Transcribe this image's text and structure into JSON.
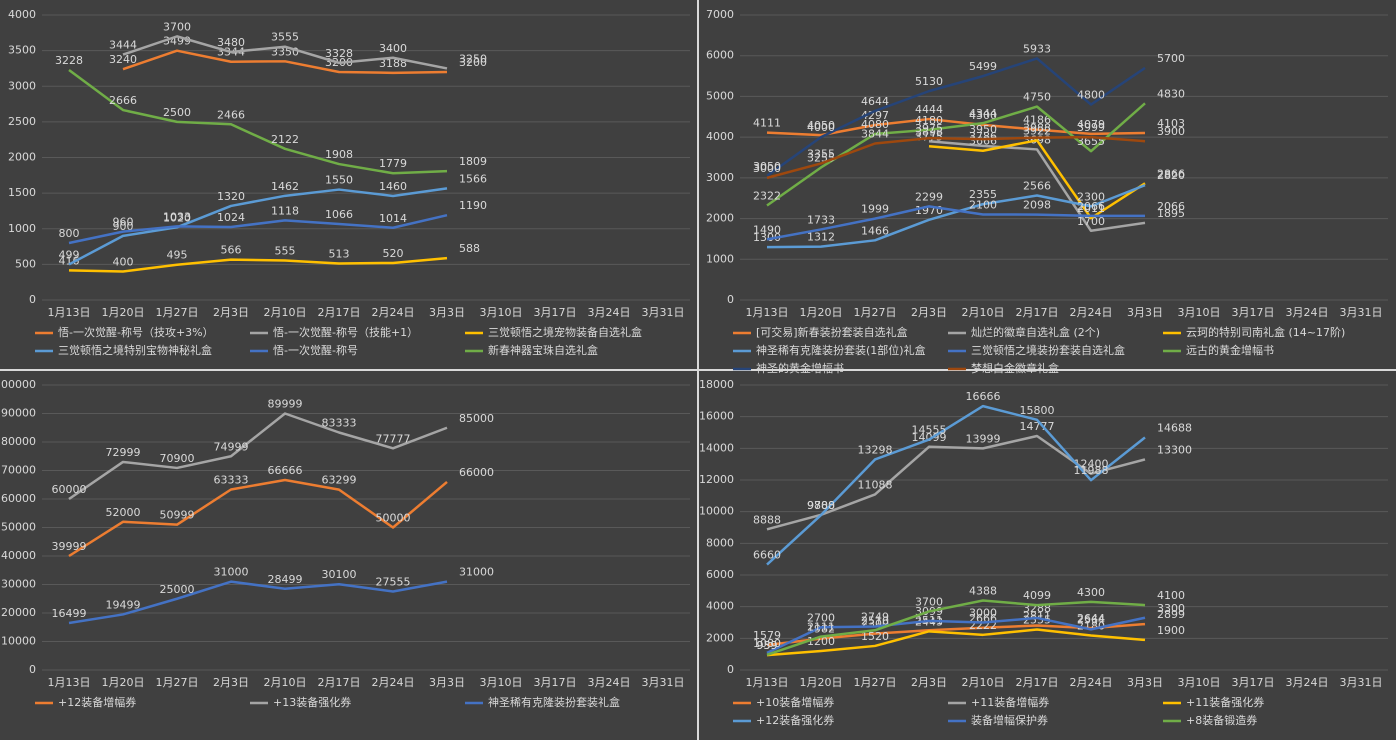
{
  "chart_data": [
    {
      "type": "line",
      "categories": [
        "1月13日",
        "1月20日",
        "1月27日",
        "2月3日",
        "2月10日",
        "2月17日",
        "2月24日",
        "3月3日",
        "3月10日",
        "3月17日",
        "3月24日",
        "3月31日"
      ],
      "ylim": [
        0,
        4000
      ],
      "yticks": [
        0,
        500,
        1000,
        1500,
        2000,
        2500,
        3000,
        3500,
        4000
      ],
      "grid": true,
      "series": [
        {
          "name": "悟-一次觉醒-称号（技攻+3%）",
          "color": "#ed7d31",
          "values": [
            null,
            3240,
            3499,
            3344,
            3350,
            3200,
            3188,
            3200,
            null,
            null,
            null,
            null
          ]
        },
        {
          "name": "悟-一次觉醒-称号（技能+1）",
          "color": "#a5a5a5",
          "values": [
            null,
            3444,
            3700,
            3480,
            3555,
            3328,
            3400,
            3250,
            null,
            null,
            null,
            null
          ]
        },
        {
          "name": "三觉顿悟之境宠物装备自选礼盒",
          "color": "#ffc000",
          "values": [
            416,
            400,
            495,
            566,
            555,
            513,
            520,
            588,
            null,
            null,
            null,
            null
          ]
        },
        {
          "name": "三觉顿悟之境特别宝物神秘礼盒",
          "color": "#5b9bd5",
          "values": [
            499,
            900,
            1020,
            1320,
            1462,
            1550,
            1460,
            1566,
            null,
            null,
            null,
            null
          ]
        },
        {
          "name": "悟-一次觉醒-称号",
          "color": "#4472c4",
          "values": [
            800,
            960,
            1033,
            1024,
            1118,
            1066,
            1014,
            1190,
            null,
            null,
            null,
            null
          ]
        },
        {
          "name": "新春神器宝珠自选礼盒",
          "color": "#70ad47",
          "values": [
            3228,
            2666,
            2500,
            2466,
            2122,
            1908,
            1779,
            1809,
            null,
            null,
            null,
            null
          ]
        }
      ]
    },
    {
      "type": "line",
      "categories": [
        "1月13日",
        "1月20日",
        "1月27日",
        "2月3日",
        "2月10日",
        "2月17日",
        "2月24日",
        "3月3日",
        "3月10日",
        "3月17日",
        "3月24日",
        "3月31日"
      ],
      "ylim": [
        0,
        7000
      ],
      "yticks": [
        0,
        1000,
        2000,
        3000,
        4000,
        5000,
        6000,
        7000
      ],
      "grid": true,
      "series": [
        {
          "name": "[可交易]新春装扮套装自选礼盒",
          "color": "#ed7d31",
          "values": [
            4111,
            4050,
            4297,
            4444,
            4300,
            4186,
            4079,
            4103,
            null,
            null,
            null,
            null
          ]
        },
        {
          "name": "灿烂的徽章自选礼盒 (2个)",
          "color": "#a5a5a5",
          "values": [
            null,
            null,
            null,
            3898,
            3786,
            3698,
            1700,
            1895,
            null,
            null,
            null,
            null
          ]
        },
        {
          "name": "云珂的特别司南礼盒 (14~17阶)",
          "color": "#ffc000",
          "values": [
            null,
            null,
            null,
            3775,
            3666,
            3922,
            2011,
            2866,
            null,
            null,
            null,
            null
          ]
        },
        {
          "name": "神圣稀有克隆装扮套装(1部位)礼盒",
          "color": "#5b9bd5",
          "values": [
            1300,
            1312,
            1466,
            1970,
            2355,
            2566,
            2300,
            2820,
            null,
            null,
            null,
            null
          ]
        },
        {
          "name": "三觉顿悟之境装扮套装自选礼盒",
          "color": "#4472c4",
          "values": [
            1490,
            1733,
            1999,
            2299,
            2100,
            2098,
            2066,
            2066,
            null,
            null,
            null,
            null
          ]
        },
        {
          "name": "远古的黄金增幅书",
          "color": "#70ad47",
          "values": [
            2322,
            3255,
            4080,
            4180,
            4344,
            4750,
            3655,
            4830,
            null,
            null,
            null,
            null
          ]
        },
        {
          "name": "神圣的黄金增幅书",
          "color": "#264478",
          "values": [
            3050,
            4000,
            4644,
            5130,
            5499,
            5933,
            4800,
            5700,
            null,
            null,
            null,
            null
          ]
        },
        {
          "name": "梦想白金徽章礼盒",
          "color": "#9e480e",
          "values": [
            3000,
            3355,
            3844,
            3975,
            3950,
            3988,
            3999,
            3900,
            null,
            null,
            null,
            null
          ]
        }
      ]
    },
    {
      "type": "line",
      "categories": [
        "1月13日",
        "1月20日",
        "1月27日",
        "2月3日",
        "2月10日",
        "2月17日",
        "2月24日",
        "3月3日",
        "3月10日",
        "3月17日",
        "3月24日",
        "3月31日"
      ],
      "ylim": [
        0,
        100000
      ],
      "yticks": [
        0,
        10000,
        20000,
        30000,
        40000,
        50000,
        60000,
        70000,
        80000,
        90000,
        100000
      ],
      "grid": true,
      "series": [
        {
          "name": "+12装备增幅券",
          "color": "#ed7d31",
          "values": [
            39999,
            52000,
            50999,
            63333,
            66666,
            63299,
            50000,
            66000,
            null,
            null,
            null,
            null
          ]
        },
        {
          "name": "+13装备强化券",
          "color": "#a5a5a5",
          "values": [
            60000,
            72999,
            70900,
            74999,
            89999,
            83333,
            77777,
            85000,
            null,
            null,
            null,
            null
          ]
        },
        {
          "name": "神圣稀有克隆装扮套装礼盒",
          "color": "#4472c4",
          "values": [
            16499,
            19499,
            25000,
            31000,
            28499,
            30100,
            27555,
            31000,
            null,
            null,
            null,
            null
          ]
        }
      ]
    },
    {
      "type": "line",
      "categories": [
        "1月13日",
        "1月20日",
        "1月27日",
        "2月3日",
        "2月10日",
        "2月17日",
        "2月24日",
        "3月3日",
        "3月10日",
        "3月17日",
        "3月24日",
        "3月31日"
      ],
      "ylim": [
        0,
        18000
      ],
      "yticks": [
        0,
        2000,
        4000,
        6000,
        8000,
        10000,
        12000,
        14000,
        16000,
        18000
      ],
      "grid": true,
      "series": [
        {
          "name": "+10装备增幅券",
          "color": "#ed7d31",
          "values": [
            1579,
            1982,
            2300,
            2511,
            2666,
            2811,
            2644,
            2899,
            null,
            null,
            null,
            null
          ]
        },
        {
          "name": "+11装备增幅券",
          "color": "#a5a5a5",
          "values": [
            8888,
            9800,
            11088,
            14099,
            13999,
            14777,
            12400,
            13300,
            null,
            null,
            null,
            null
          ]
        },
        {
          "name": "+11装备强化券",
          "color": "#ffc000",
          "values": [
            939,
            1200,
            1520,
            2443,
            2222,
            2555,
            2180,
            1900,
            null,
            null,
            null,
            null
          ]
        },
        {
          "name": "+12装备强化券",
          "color": "#5b9bd5",
          "values": [
            6660,
            9788,
            13298,
            14555,
            16666,
            15800,
            11988,
            14688,
            null,
            null,
            null,
            null
          ]
        },
        {
          "name": "装备增幅保护券",
          "color": "#4472c4",
          "values": [
            1080,
            2700,
            2749,
            3099,
            3000,
            3288,
            2564,
            3300,
            null,
            null,
            null,
            null
          ]
        },
        {
          "name": "+8装备锻造券",
          "color": "#70ad47",
          "values": [
            959,
            2111,
            2510,
            3700,
            4388,
            4099,
            4300,
            4100,
            null,
            null,
            null,
            null
          ]
        }
      ]
    }
  ]
}
